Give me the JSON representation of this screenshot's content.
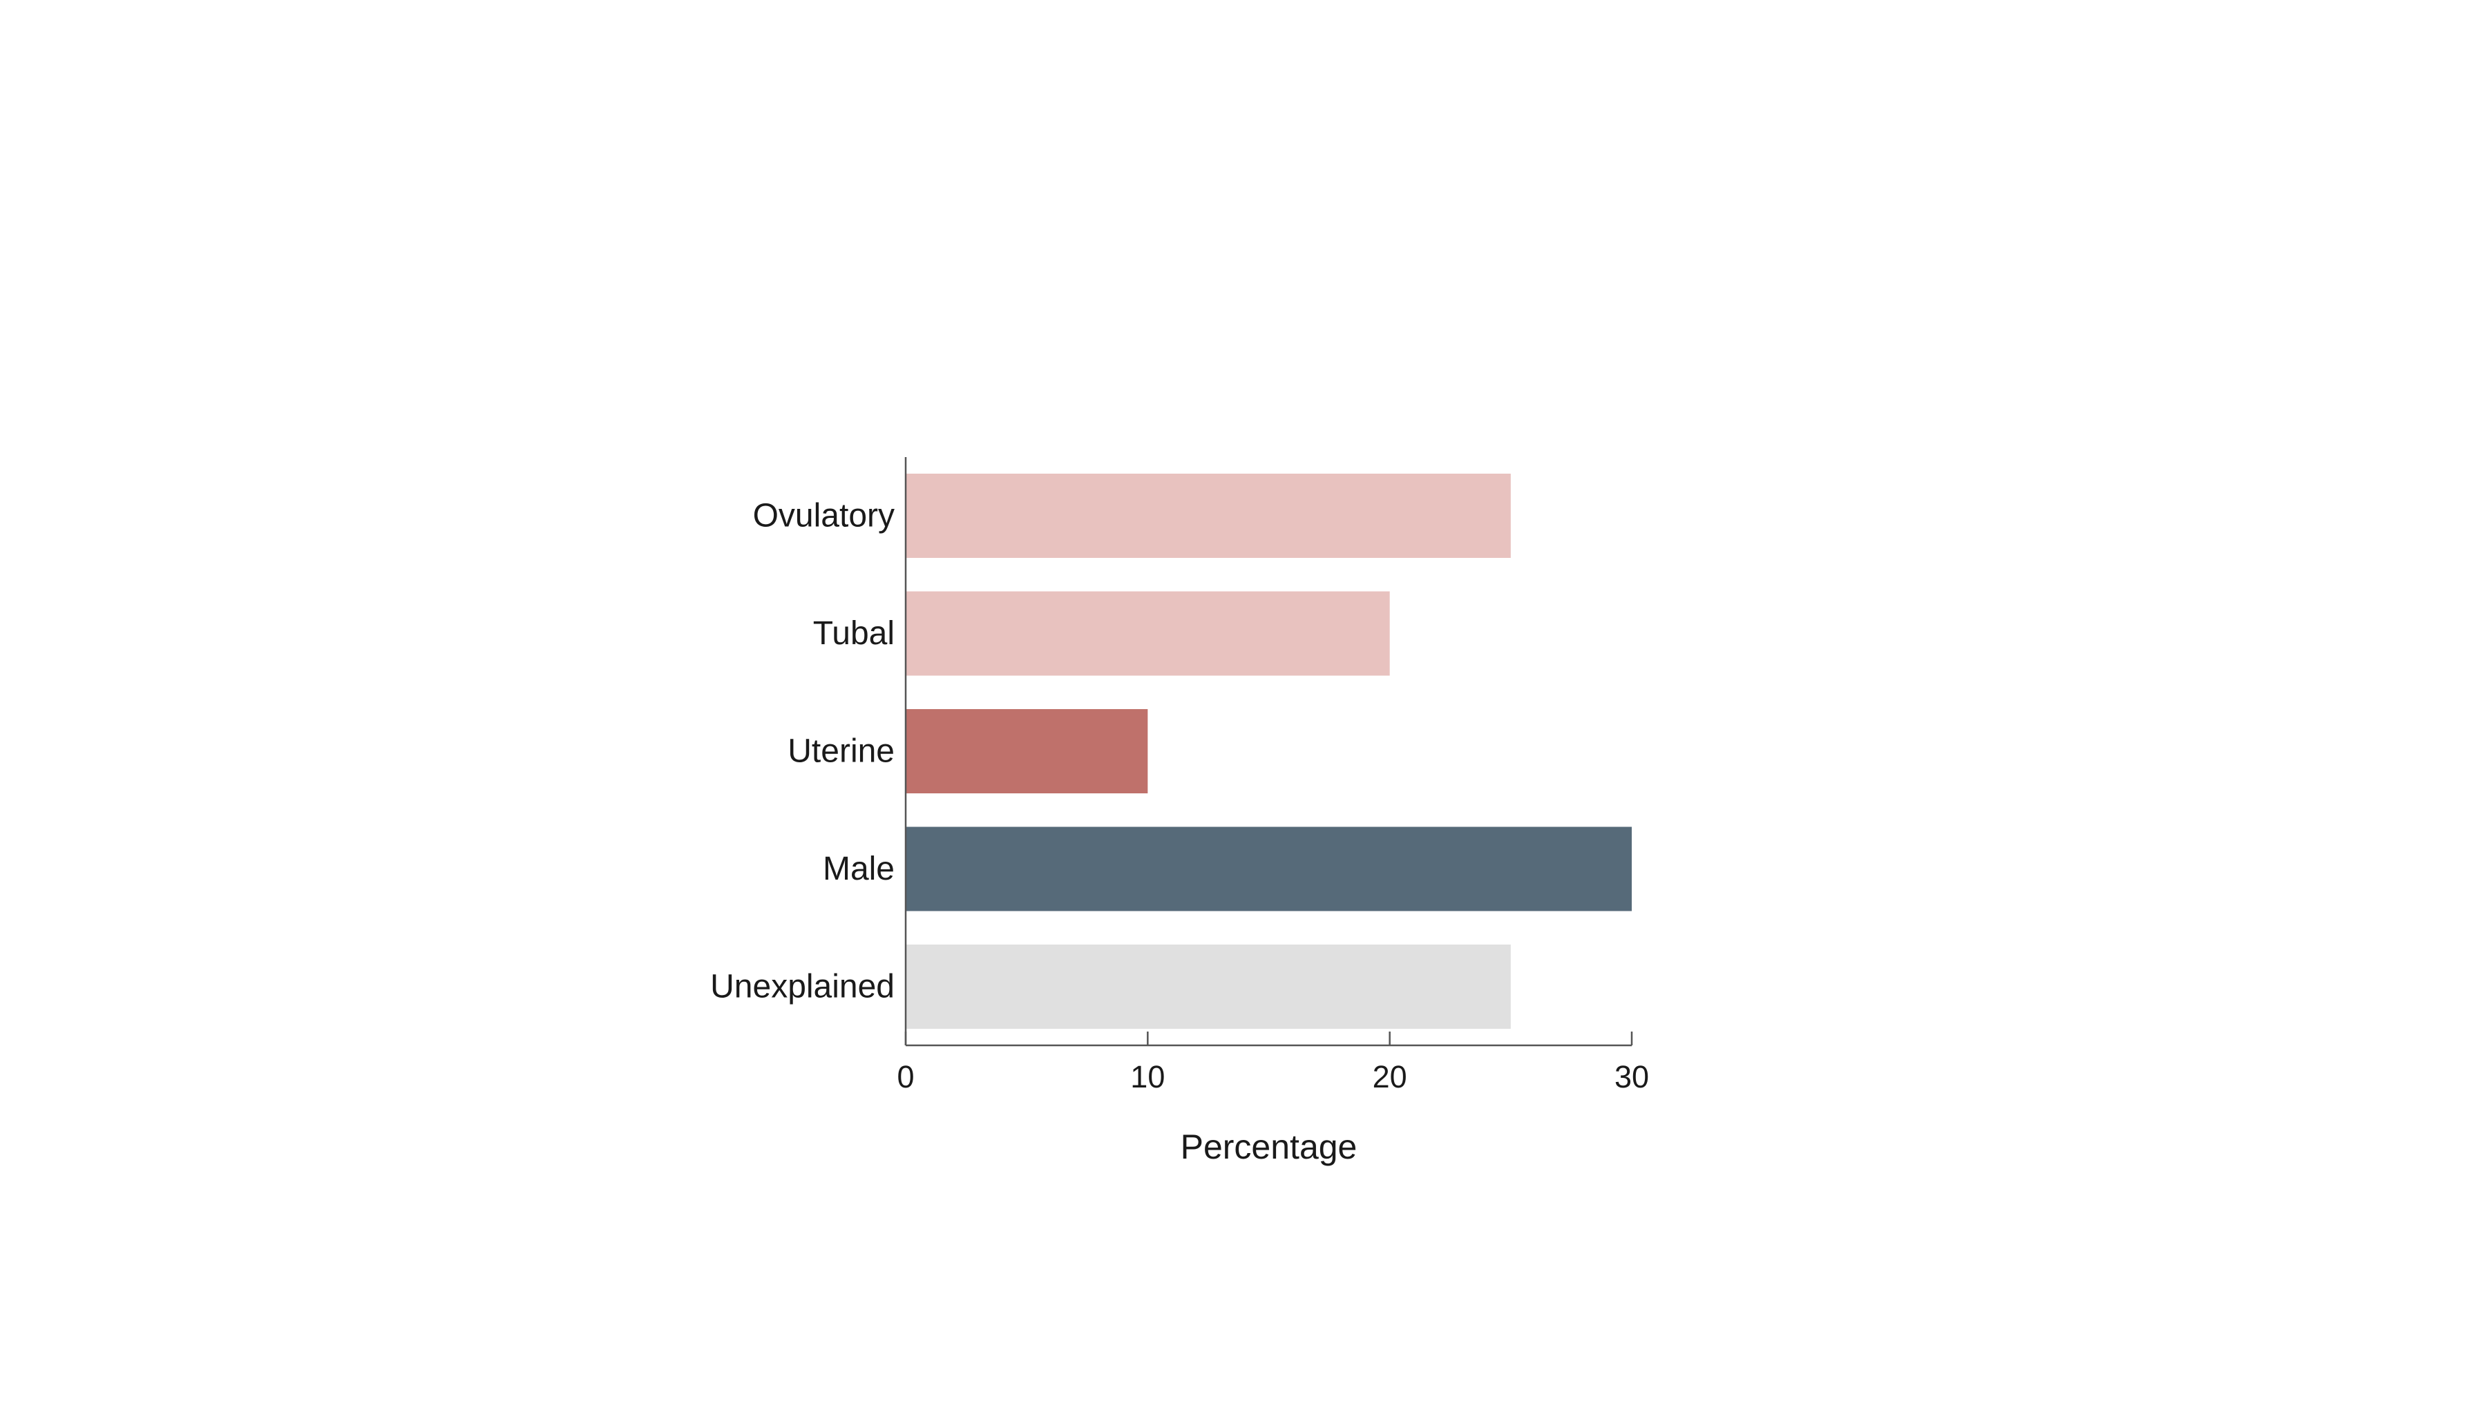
{
  "chart_data": {
    "type": "bar",
    "orientation": "horizontal",
    "categories": [
      "Ovulatory",
      "Tubal",
      "Uterine",
      "Male",
      "Unexplained"
    ],
    "values": [
      25,
      20,
      10,
      30,
      25
    ],
    "colors": [
      "#e8c2bf",
      "#e8c2bf",
      "#bf716b",
      "#566a79",
      "#e0e0e0"
    ],
    "title": "",
    "xlabel": "Percentage",
    "ylabel": "",
    "xlim": [
      0,
      30
    ],
    "xticks": [
      0,
      10,
      20,
      30
    ],
    "xtick_labels": [
      "0",
      "10",
      "20",
      "30"
    ],
    "grid": false,
    "legend": "none"
  }
}
